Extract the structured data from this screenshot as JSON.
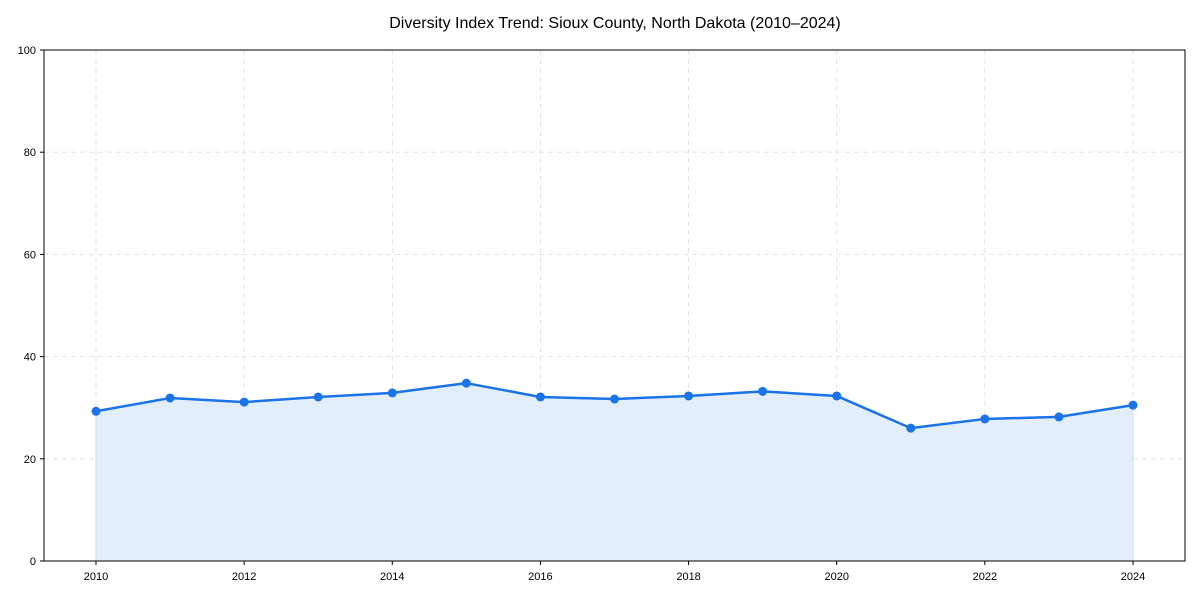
{
  "chart_data": {
    "type": "line",
    "title": "Diversity Index Trend: Sioux County, North Dakota (2010–2024)",
    "xlabel": "",
    "ylabel": "",
    "x": [
      2010,
      2011,
      2012,
      2013,
      2014,
      2015,
      2016,
      2017,
      2018,
      2019,
      2020,
      2021,
      2022,
      2023,
      2024
    ],
    "series": [
      {
        "name": "Diversity Index",
        "values": [
          29.3,
          31.9,
          31.1,
          32.1,
          32.9,
          34.8,
          32.1,
          31.7,
          32.3,
          33.2,
          32.3,
          26.0,
          27.8,
          28.2,
          30.5
        ],
        "color": "#1a73e8",
        "fill": "#e3eefc"
      }
    ],
    "xlim": [
      2009.3,
      2024.7
    ],
    "ylim": [
      0,
      100
    ],
    "xticks": [
      "2010",
      "2012",
      "2014",
      "2016",
      "2018",
      "2020",
      "2022",
      "2024"
    ],
    "yticks": [
      "0",
      "20",
      "40",
      "60",
      "80",
      "100"
    ],
    "grid": true,
    "legend": "none"
  }
}
